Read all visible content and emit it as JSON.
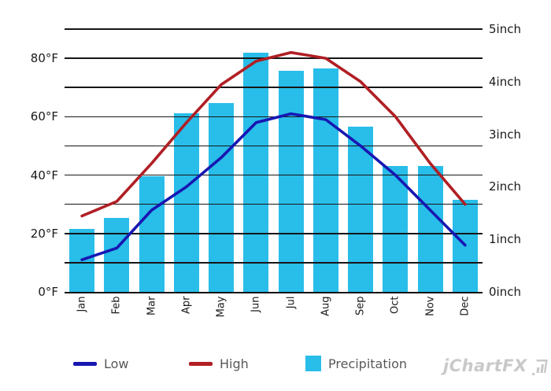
{
  "chart_data": {
    "type": "combo",
    "categories": [
      "Jan",
      "Feb",
      "Mar",
      "Apr",
      "May",
      "Jun",
      "Jul",
      "Aug",
      "Sep",
      "Oct",
      "Nov",
      "Dec"
    ],
    "series": [
      {
        "name": "Low",
        "type": "line",
        "axis": "temperature",
        "color": "#1717b2",
        "values": [
          11,
          15,
          28,
          36,
          46,
          58,
          61,
          59,
          50,
          40,
          28,
          16
        ]
      },
      {
        "name": "High",
        "type": "line",
        "axis": "temperature",
        "color": "#b01f24",
        "values": [
          26,
          31,
          44,
          58,
          71,
          79,
          82,
          80,
          72,
          60,
          44,
          30
        ]
      },
      {
        "name": "Precipitation",
        "type": "bar",
        "axis": "precipitation",
        "color": "#29bde9",
        "values": [
          1.2,
          1.4,
          2.2,
          3.4,
          3.6,
          4.55,
          4.2,
          4.25,
          3.15,
          2.4,
          2.4,
          1.75
        ]
      }
    ],
    "left_axis": {
      "unit": "°F",
      "min": 0,
      "max": 90,
      "grid_step": 10,
      "tick_values": [
        0,
        20,
        40,
        60,
        80
      ],
      "tick_labels": [
        "0°F",
        "20°F",
        "40°F",
        "60°F",
        "80°F"
      ]
    },
    "right_axis": {
      "unit": "inch",
      "min": 0,
      "max": 5,
      "tick_values": [
        0,
        1,
        2,
        3,
        4,
        5
      ],
      "tick_labels": [
        "0inch",
        "1inch",
        "2inch",
        "3inch",
        "4inch",
        "5inch"
      ]
    },
    "grid": true,
    "legend_position": "bottom"
  },
  "legend": {
    "low_label": "Low",
    "high_label": "High",
    "precipitation_label": "Precipitation"
  },
  "branding": {
    "logo_text": "jChartFX"
  }
}
